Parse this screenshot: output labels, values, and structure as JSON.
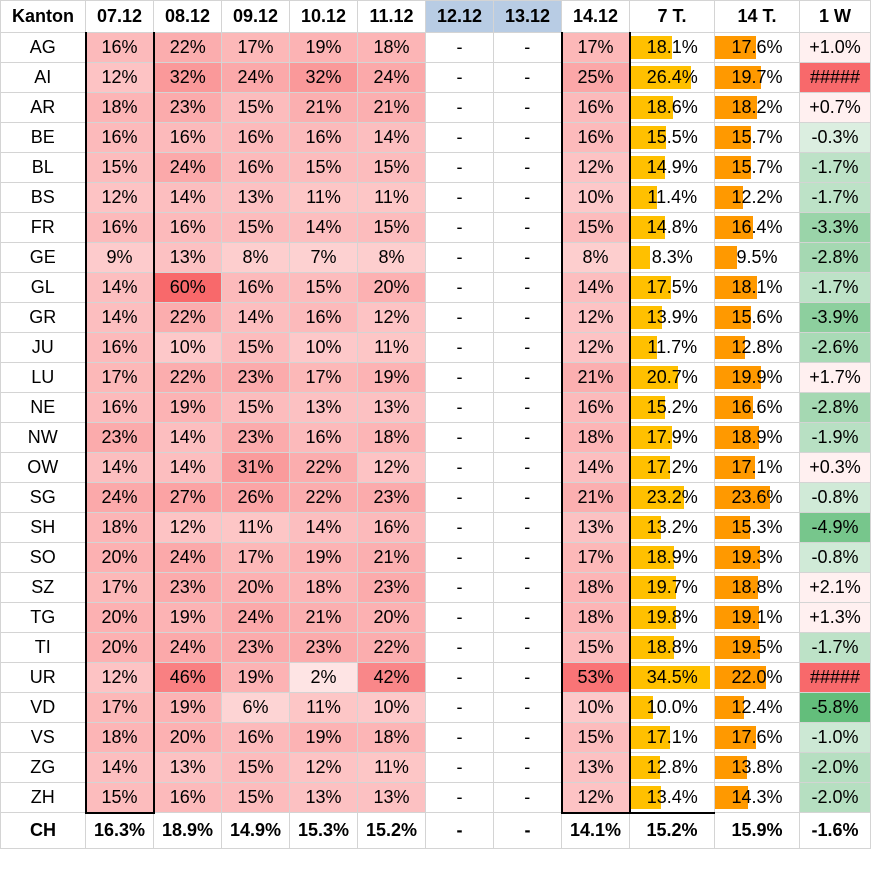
{
  "colors": {
    "bar7": "#ffc000",
    "bar14": "#ff9900",
    "heat_low": "#fff5f5",
    "heat_high": "#f8696b",
    "pos_bg": "#fff0f0",
    "neg_light": "#e2f1e6",
    "neg_dark": "#63be7b",
    "hash_bg": "#f8696b"
  },
  "table": {
    "headers": [
      "Kanton",
      "07.12",
      "08.12",
      "09.12",
      "10.12",
      "11.12",
      "12.12",
      "13.12",
      "14.12",
      "7 T.",
      "14 T.",
      "1 W"
    ],
    "shaded_headers": [
      6,
      7
    ],
    "rows": [
      {
        "canton": "AG",
        "daily": [
          "16%",
          "22%",
          "17%",
          "19%",
          "18%",
          "-",
          "-",
          "17%"
        ],
        "avg7": "18.1%",
        "avg14": "17.6%",
        "week": "+1.0%"
      },
      {
        "canton": "AI",
        "daily": [
          "12%",
          "32%",
          "24%",
          "32%",
          "24%",
          "-",
          "-",
          "25%"
        ],
        "avg7": "26.4%",
        "avg14": "19.7%",
        "week": "#####"
      },
      {
        "canton": "AR",
        "daily": [
          "18%",
          "23%",
          "15%",
          "21%",
          "21%",
          "-",
          "-",
          "16%"
        ],
        "avg7": "18.6%",
        "avg14": "18.2%",
        "week": "+0.7%"
      },
      {
        "canton": "BE",
        "daily": [
          "16%",
          "16%",
          "16%",
          "16%",
          "14%",
          "-",
          "-",
          "16%"
        ],
        "avg7": "15.5%",
        "avg14": "15.7%",
        "week": "-0.3%"
      },
      {
        "canton": "BL",
        "daily": [
          "15%",
          "24%",
          "16%",
          "15%",
          "15%",
          "-",
          "-",
          "12%"
        ],
        "avg7": "14.9%",
        "avg14": "15.7%",
        "week": "-1.7%"
      },
      {
        "canton": "BS",
        "daily": [
          "12%",
          "14%",
          "13%",
          "11%",
          "11%",
          "-",
          "-",
          "10%"
        ],
        "avg7": "11.4%",
        "avg14": "12.2%",
        "week": "-1.7%"
      },
      {
        "canton": "FR",
        "daily": [
          "16%",
          "16%",
          "15%",
          "14%",
          "15%",
          "-",
          "-",
          "15%"
        ],
        "avg7": "14.8%",
        "avg14": "16.4%",
        "week": "-3.3%"
      },
      {
        "canton": "GE",
        "daily": [
          "9%",
          "13%",
          "8%",
          "7%",
          "8%",
          "-",
          "-",
          "8%"
        ],
        "avg7": "8.3%",
        "avg14": "9.5%",
        "week": "-2.8%"
      },
      {
        "canton": "GL",
        "daily": [
          "14%",
          "60%",
          "16%",
          "15%",
          "20%",
          "-",
          "-",
          "14%"
        ],
        "avg7": "17.5%",
        "avg14": "18.1%",
        "week": "-1.7%"
      },
      {
        "canton": "GR",
        "daily": [
          "14%",
          "22%",
          "14%",
          "16%",
          "12%",
          "-",
          "-",
          "12%"
        ],
        "avg7": "13.9%",
        "avg14": "15.6%",
        "week": "-3.9%"
      },
      {
        "canton": "JU",
        "daily": [
          "16%",
          "10%",
          "15%",
          "10%",
          "11%",
          "-",
          "-",
          "12%"
        ],
        "avg7": "11.7%",
        "avg14": "12.8%",
        "week": "-2.6%"
      },
      {
        "canton": "LU",
        "daily": [
          "17%",
          "22%",
          "23%",
          "17%",
          "19%",
          "-",
          "-",
          "21%"
        ],
        "avg7": "20.7%",
        "avg14": "19.9%",
        "week": "+1.7%"
      },
      {
        "canton": "NE",
        "daily": [
          "16%",
          "19%",
          "15%",
          "13%",
          "13%",
          "-",
          "-",
          "16%"
        ],
        "avg7": "15.2%",
        "avg14": "16.6%",
        "week": "-2.8%"
      },
      {
        "canton": "NW",
        "daily": [
          "23%",
          "14%",
          "23%",
          "16%",
          "18%",
          "-",
          "-",
          "18%"
        ],
        "avg7": "17.9%",
        "avg14": "18.9%",
        "week": "-1.9%"
      },
      {
        "canton": "OW",
        "daily": [
          "14%",
          "14%",
          "31%",
          "22%",
          "12%",
          "-",
          "-",
          "14%"
        ],
        "avg7": "17.2%",
        "avg14": "17.1%",
        "week": "+0.3%"
      },
      {
        "canton": "SG",
        "daily": [
          "24%",
          "27%",
          "26%",
          "22%",
          "23%",
          "-",
          "-",
          "21%"
        ],
        "avg7": "23.2%",
        "avg14": "23.6%",
        "week": "-0.8%"
      },
      {
        "canton": "SH",
        "daily": [
          "18%",
          "12%",
          "11%",
          "14%",
          "16%",
          "-",
          "-",
          "13%"
        ],
        "avg7": "13.2%",
        "avg14": "15.3%",
        "week": "-4.9%"
      },
      {
        "canton": "SO",
        "daily": [
          "20%",
          "24%",
          "17%",
          "19%",
          "21%",
          "-",
          "-",
          "17%"
        ],
        "avg7": "18.9%",
        "avg14": "19.3%",
        "week": "-0.8%"
      },
      {
        "canton": "SZ",
        "daily": [
          "17%",
          "23%",
          "20%",
          "18%",
          "23%",
          "-",
          "-",
          "18%"
        ],
        "avg7": "19.7%",
        "avg14": "18.8%",
        "week": "+2.1%"
      },
      {
        "canton": "TG",
        "daily": [
          "20%",
          "19%",
          "24%",
          "21%",
          "20%",
          "-",
          "-",
          "18%"
        ],
        "avg7": "19.8%",
        "avg14": "19.1%",
        "week": "+1.3%"
      },
      {
        "canton": "TI",
        "daily": [
          "20%",
          "24%",
          "23%",
          "23%",
          "22%",
          "-",
          "-",
          "15%"
        ],
        "avg7": "18.8%",
        "avg14": "19.5%",
        "week": "-1.7%"
      },
      {
        "canton": "UR",
        "daily": [
          "12%",
          "46%",
          "19%",
          "2%",
          "42%",
          "-",
          "-",
          "53%"
        ],
        "avg7": "34.5%",
        "avg14": "22.0%",
        "week": "#####"
      },
      {
        "canton": "VD",
        "daily": [
          "17%",
          "19%",
          "6%",
          "11%",
          "10%",
          "-",
          "-",
          "10%"
        ],
        "avg7": "10.0%",
        "avg14": "12.4%",
        "week": "-5.8%"
      },
      {
        "canton": "VS",
        "daily": [
          "18%",
          "20%",
          "16%",
          "19%",
          "18%",
          "-",
          "-",
          "15%"
        ],
        "avg7": "17.1%",
        "avg14": "17.6%",
        "week": "-1.0%"
      },
      {
        "canton": "ZG",
        "daily": [
          "14%",
          "13%",
          "15%",
          "12%",
          "11%",
          "-",
          "-",
          "13%"
        ],
        "avg7": "12.8%",
        "avg14": "13.8%",
        "week": "-2.0%"
      },
      {
        "canton": "ZH",
        "daily": [
          "15%",
          "16%",
          "15%",
          "13%",
          "13%",
          "-",
          "-",
          "12%"
        ],
        "avg7": "13.4%",
        "avg14": "14.3%",
        "week": "-2.0%"
      }
    ],
    "summary": {
      "canton": "CH",
      "daily": [
        "16.3%",
        "18.9%",
        "14.9%",
        "15.3%",
        "15.2%",
        "-",
        "-",
        "14.1%"
      ],
      "avg7": "15.2%",
      "avg14": "15.9%",
      "week": "-1.6%"
    }
  }
}
